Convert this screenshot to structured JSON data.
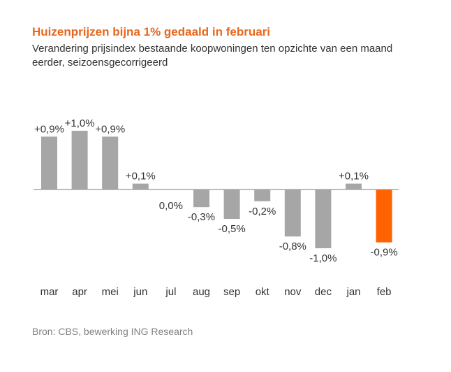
{
  "title": "Huizenprijzen bijna 1% gedaald in februari",
  "subtitle": "Verandering prijsindex bestaande koopwoningen ten opzichte van een maand eerder, seizoensgecorrigeerd",
  "source": "Bron: CBS, bewerking ING Research",
  "colors": {
    "title": "#e8671c",
    "bar": "#a6a6a6",
    "highlight": "#ff6200",
    "axis": "#a6a6a6"
  },
  "chart_data": {
    "type": "bar",
    "categories": [
      "mar",
      "apr",
      "mei",
      "jun",
      "jul",
      "aug",
      "sep",
      "okt",
      "nov",
      "dec",
      "jan",
      "feb"
    ],
    "values": [
      0.9,
      1.0,
      0.9,
      0.1,
      0.0,
      -0.3,
      -0.5,
      -0.2,
      -0.8,
      -1.0,
      0.1,
      -0.9
    ],
    "labels": [
      "+0,9%",
      "+1,0%",
      "+0,9%",
      "+0,1%",
      "0,0%",
      "-0,3%",
      "-0,5%",
      "-0,2%",
      "-0,8%",
      "-1,0%",
      "+0,1%",
      "-0,9%"
    ],
    "highlight_index": 11,
    "ylim": [
      -1.0,
      1.0
    ],
    "grid": false,
    "legend": "none",
    "xlabel": "",
    "ylabel": ""
  }
}
